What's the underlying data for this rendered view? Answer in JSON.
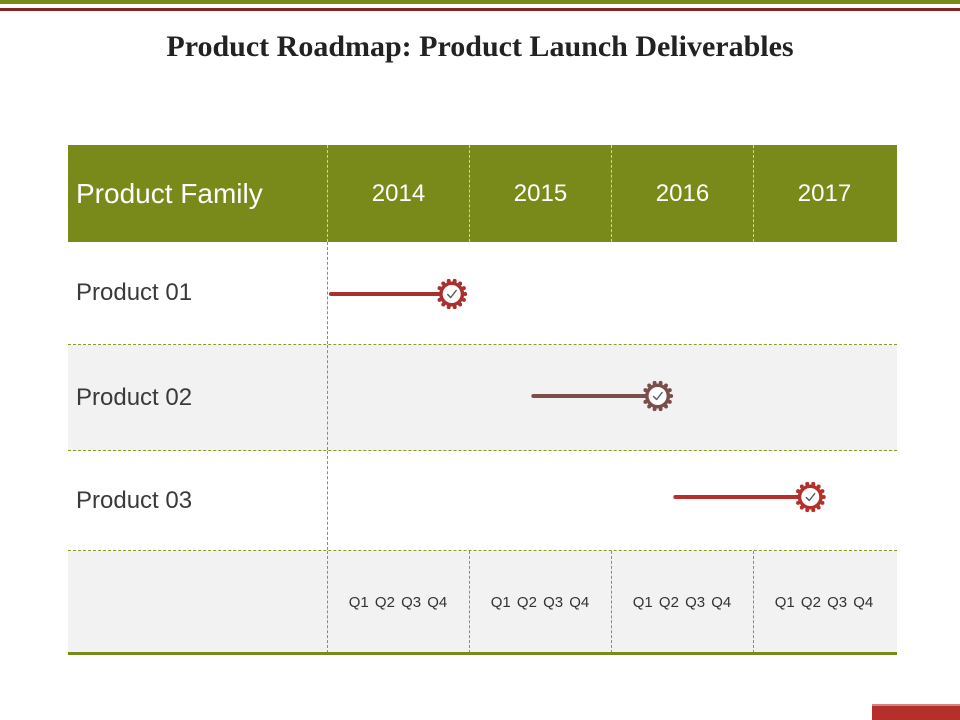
{
  "title": "Product Roadmap: Product Launch Deliverables",
  "header": {
    "first": "Product Family",
    "years": [
      "2014",
      "2015",
      "2016",
      "2017"
    ]
  },
  "quarters_label": "Q1 Q2 Q3  Q4",
  "rows": [
    {
      "label": "Product 01",
      "start_quarter": 0.0,
      "end_quarter": 3.4,
      "color": "#a8302e"
    },
    {
      "label": "Product 02",
      "start_quarter": 5.7,
      "end_quarter": 9.2,
      "color": "#7a4f4a"
    },
    {
      "label": "Product 03",
      "start_quarter": 9.7,
      "end_quarter": 13.5,
      "color": "#b5302a"
    }
  ],
  "colors": {
    "accent": "#7a8a1a",
    "row_alt": "#f2f2f2",
    "dark_red": "#8b2323"
  },
  "icons": {
    "milestone": "check-gear-icon"
  }
}
